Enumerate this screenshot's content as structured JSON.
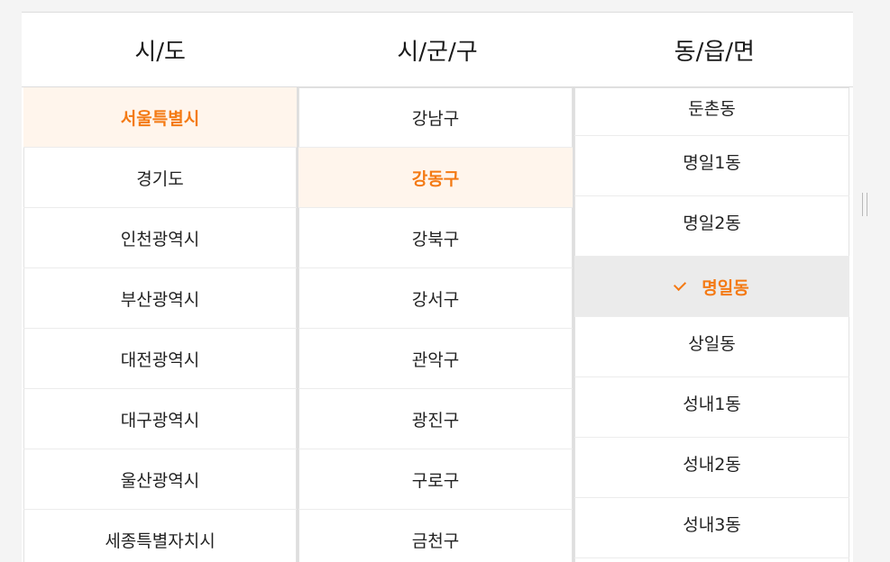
{
  "headers": {
    "province": "시/도",
    "district": "시/군/구",
    "neighborhood": "동/읍/면"
  },
  "colors": {
    "accent": "#f47a14",
    "selected_bg": "#fff5ec",
    "checked_bg": "#ebebeb"
  },
  "provinces": [
    {
      "label": "서울특별시",
      "selected": true
    },
    {
      "label": "경기도"
    },
    {
      "label": "인천광역시"
    },
    {
      "label": "부산광역시"
    },
    {
      "label": "대전광역시"
    },
    {
      "label": "대구광역시"
    },
    {
      "label": "울산광역시"
    },
    {
      "label": "세종특별자치시"
    }
  ],
  "districts": [
    {
      "label": "강남구"
    },
    {
      "label": "강동구",
      "selected": true
    },
    {
      "label": "강북구"
    },
    {
      "label": "강서구"
    },
    {
      "label": "관악구"
    },
    {
      "label": "광진구"
    },
    {
      "label": "구로구"
    },
    {
      "label": "금천구"
    }
  ],
  "neighborhoods": [
    {
      "label": "둔촌동"
    },
    {
      "label": "명일1동"
    },
    {
      "label": "명일2동"
    },
    {
      "label": "명일동",
      "checked": true,
      "icon": "check-icon"
    },
    {
      "label": "상일동"
    },
    {
      "label": "성내1동"
    },
    {
      "label": "성내2동"
    },
    {
      "label": "성내3동"
    }
  ]
}
